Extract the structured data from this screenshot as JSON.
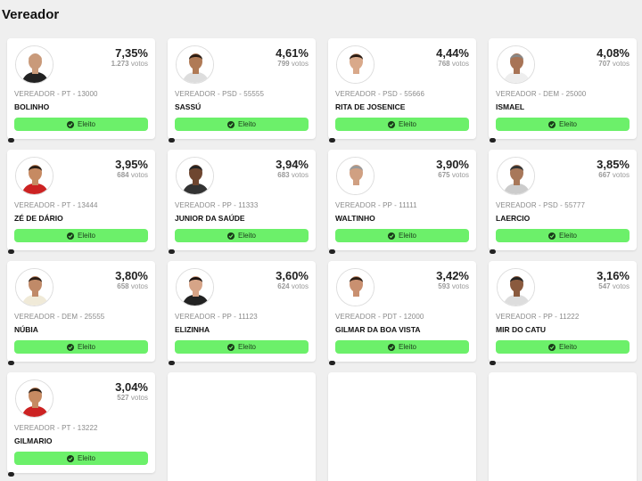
{
  "page_title": "Vereador",
  "candidates": [
    {
      "name": "BOLINHO",
      "party": "VEREADOR - PT - 13000",
      "pct": "7,35%",
      "votes": "1.273",
      "votes_suffix": "votos",
      "status": "Eleito",
      "skin": "#c99a7a",
      "hair": "#c99a7a",
      "shirt": "#222222"
    },
    {
      "name": "SASSÚ",
      "party": "VEREADOR - PSD - 55555",
      "pct": "4,61%",
      "votes": "799",
      "votes_suffix": "votos",
      "status": "Eleito",
      "skin": "#b07a55",
      "hair": "#2b1d14",
      "shirt": "#dddddd"
    },
    {
      "name": "RITA DE JOSENICE",
      "party": "VEREADOR - PSD - 55666",
      "pct": "4,44%",
      "votes": "768",
      "votes_suffix": "votos",
      "status": "Eleito",
      "skin": "#d9a98a",
      "hair": "#2b1d14",
      "shirt": "#ffffff"
    },
    {
      "name": "ISMAEL",
      "party": "VEREADOR - DEM - 25000",
      "pct": "4,08%",
      "votes": "707",
      "votes_suffix": "votos",
      "status": "Eleito",
      "skin": "#a87456",
      "hair": "#888888",
      "shirt": "#eeeeee"
    },
    {
      "name": "ZÉ DE DÁRIO",
      "party": "VEREADOR - PT - 13444",
      "pct": "3,95%",
      "votes": "684",
      "votes_suffix": "votos",
      "status": "Eleito",
      "skin": "#c68a62",
      "hair": "#2b1d14",
      "shirt": "#cc2222"
    },
    {
      "name": "JUNIOR DA SAÚDE",
      "party": "VEREADOR - PP - 11333",
      "pct": "3,94%",
      "votes": "683",
      "votes_suffix": "votos",
      "status": "Eleito",
      "skin": "#6e4630",
      "hair": "#222222",
      "shirt": "#333333"
    },
    {
      "name": "WALTINHO",
      "party": "VEREADOR - PP - 11111",
      "pct": "3,90%",
      "votes": "675",
      "votes_suffix": "votos",
      "status": "Eleito",
      "skin": "#d0a082",
      "hair": "#999999",
      "shirt": "#ffffff"
    },
    {
      "name": "LAERCIO",
      "party": "VEREADOR - PSD - 55777",
      "pct": "3,85%",
      "votes": "667",
      "votes_suffix": "votos",
      "status": "Eleito",
      "skin": "#a8785a",
      "hair": "#333333",
      "shirt": "#cccccc"
    },
    {
      "name": "NÚBIA",
      "party": "VEREADOR - DEM - 25555",
      "pct": "3,80%",
      "votes": "658",
      "votes_suffix": "votos",
      "status": "Eleito",
      "skin": "#c08a68",
      "hair": "#2b1d14",
      "shirt": "#f0ead8"
    },
    {
      "name": "ELIZINHA",
      "party": "VEREADOR - PP - 11123",
      "pct": "3,60%",
      "votes": "624",
      "votes_suffix": "votos",
      "status": "Eleito",
      "skin": "#d6a487",
      "hair": "#1a1210",
      "shirt": "#222222"
    },
    {
      "name": "GILMAR DA BOA VISTA",
      "party": "VEREADOR - PDT - 12000",
      "pct": "3,42%",
      "votes": "593",
      "votes_suffix": "votos",
      "status": "Eleito",
      "skin": "#c99070",
      "hair": "#2b1d14",
      "shirt": "#ffffff"
    },
    {
      "name": "MIR DO CATU",
      "party": "VEREADOR - PP - 11222",
      "pct": "3,16%",
      "votes": "547",
      "votes_suffix": "votos",
      "status": "Eleito",
      "skin": "#8a5a3e",
      "hair": "#222222",
      "shirt": "#dddddd"
    },
    {
      "name": "GILMARIO",
      "party": "VEREADOR - PT - 13222",
      "pct": "3,04%",
      "votes": "527",
      "votes_suffix": "votos",
      "status": "Eleito",
      "skin": "#c68a62",
      "hair": "#2b1d14",
      "shirt": "#cc2222"
    }
  ],
  "colors": {
    "badge_green": "#6cf06a",
    "background": "#efefef"
  }
}
